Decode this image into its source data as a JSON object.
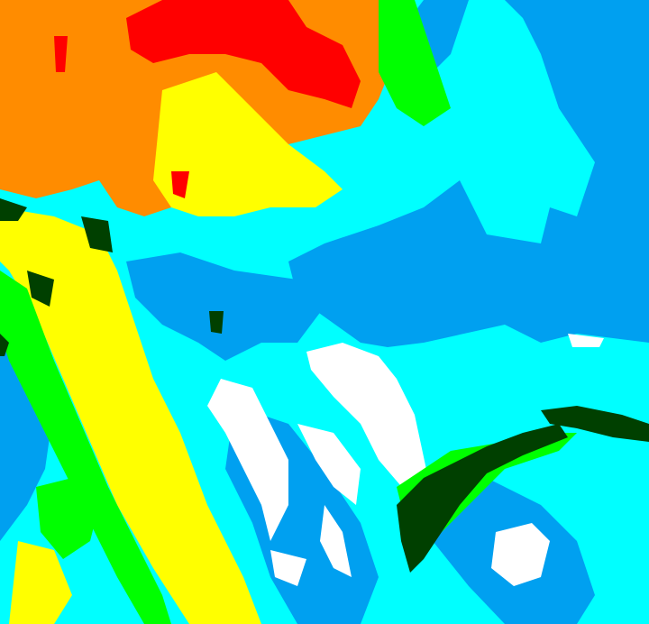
{
  "image": {
    "kind": "classified satellite/radar imagery",
    "palette": {
      "background": "#00ffff",
      "blue": "#00a0f0",
      "white": "#ffffff",
      "orange": "#ff8c00",
      "red": "#ff0000",
      "yellow": "#ffff00",
      "green": "#00ff00",
      "dark_green": "#004000"
    }
  }
}
